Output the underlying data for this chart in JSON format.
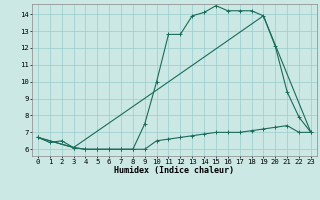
{
  "title": "",
  "xlabel": "Humidex (Indice chaleur)",
  "background_color": "#cce8e4",
  "grid_color": "#99cccc",
  "line_color": "#1a6b5a",
  "xlim": [
    -0.5,
    23.5
  ],
  "ylim": [
    5.6,
    14.6
  ],
  "x_ticks": [
    0,
    1,
    2,
    3,
    4,
    5,
    6,
    7,
    8,
    9,
    10,
    11,
    12,
    13,
    14,
    15,
    16,
    17,
    18,
    19,
    20,
    21,
    22,
    23
  ],
  "y_ticks": [
    6,
    7,
    8,
    9,
    10,
    11,
    12,
    13,
    14
  ],
  "line1_x": [
    0,
    1,
    2,
    3,
    4,
    5,
    6,
    7,
    8,
    9,
    10,
    11,
    12,
    13,
    14,
    15,
    16,
    17,
    18,
    19,
    20,
    21,
    22,
    23
  ],
  "line1_y": [
    6.7,
    6.4,
    6.5,
    6.1,
    6.0,
    6.0,
    6.0,
    6.0,
    6.0,
    6.0,
    6.5,
    6.6,
    6.7,
    6.8,
    6.9,
    7.0,
    7.0,
    7.0,
    7.1,
    7.2,
    7.3,
    7.4,
    7.0,
    7.0
  ],
  "line2_x": [
    0,
    3,
    4,
    5,
    6,
    7,
    8,
    9,
    10,
    11,
    12,
    13,
    14,
    15,
    16,
    17,
    18,
    19,
    20,
    21,
    22,
    23
  ],
  "line2_y": [
    6.7,
    6.1,
    6.0,
    6.0,
    6.0,
    6.0,
    6.0,
    7.5,
    10.0,
    12.8,
    12.8,
    13.9,
    14.1,
    14.5,
    14.2,
    14.2,
    14.2,
    13.9,
    12.1,
    9.4,
    7.9,
    7.0
  ],
  "line3_x": [
    0,
    3,
    10,
    19,
    23
  ],
  "line3_y": [
    6.7,
    6.1,
    9.5,
    13.9,
    7.0
  ]
}
